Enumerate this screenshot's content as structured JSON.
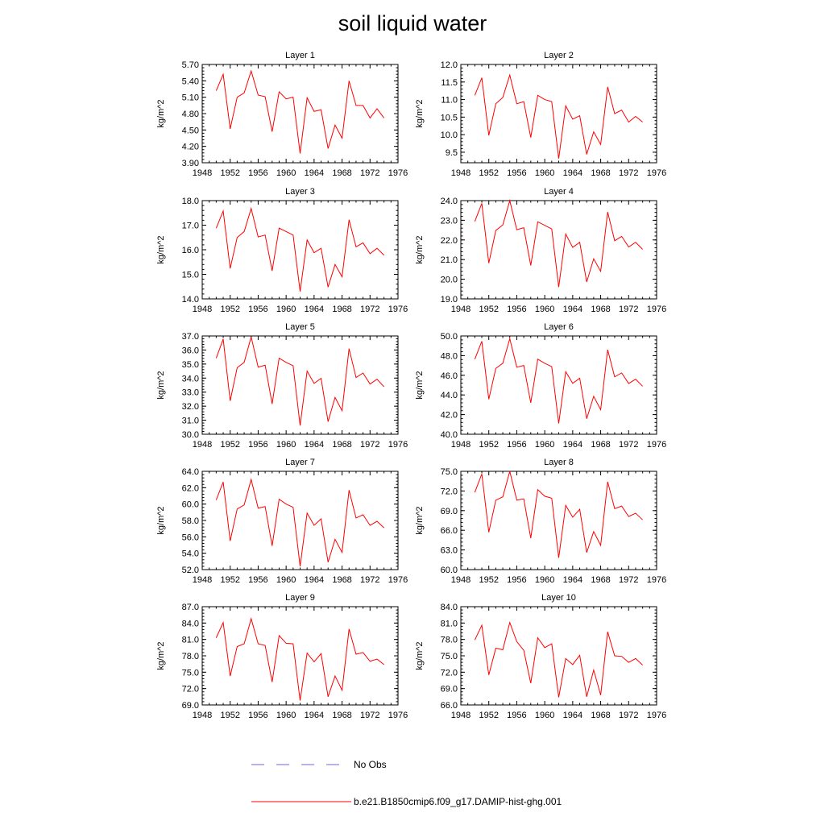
{
  "title": "soil liquid water",
  "legend": [
    {
      "label": "No Obs",
      "color": "#6a6ad0",
      "style": "dashed"
    },
    {
      "label": "b.e21.B1850cmip6.f09_g17.DAMIP-hist-ghg.001",
      "color": "#ff0000",
      "style": "solid"
    }
  ],
  "chart_data": [
    {
      "type": "line",
      "title": "Layer 1",
      "ylabel": "kg/m^2",
      "xlim": [
        1948,
        1976
      ],
      "xticks": [
        "1948",
        "1952",
        "1956",
        "1960",
        "1964",
        "1968",
        "1972",
        "1976"
      ],
      "ylim": [
        3.9,
        5.7
      ],
      "yticks": [
        "3.90",
        "4.20",
        "4.50",
        "4.80",
        "5.10",
        "5.40",
        "5.70"
      ],
      "x": [
        1950,
        1951,
        1952,
        1953,
        1954,
        1955,
        1956,
        1957,
        1958,
        1959,
        1960,
        1961,
        1962,
        1963,
        1964,
        1965,
        1966,
        1967,
        1968,
        1969,
        1970,
        1971,
        1972,
        1973,
        1974
      ],
      "series": [
        {
          "name": "b.e21.B1850cmip6.f09_g17.DAMIP-hist-ghg.001",
          "color": "#ff0000",
          "values": [
            5.22,
            5.52,
            4.52,
            5.1,
            5.18,
            5.58,
            5.14,
            5.11,
            4.47,
            5.2,
            5.07,
            5.1,
            4.07,
            5.09,
            4.84,
            4.87,
            4.16,
            4.59,
            4.35,
            5.4,
            4.95,
            4.95,
            4.72,
            4.89,
            4.72
          ]
        }
      ]
    },
    {
      "type": "line",
      "title": "Layer 2",
      "ylabel": "kg/m^2",
      "xlim": [
        1948,
        1976
      ],
      "xticks": [
        "1948",
        "1952",
        "1956",
        "1960",
        "1964",
        "1968",
        "1972",
        "1976"
      ],
      "ylim": [
        9.2,
        12.0
      ],
      "yticks": [
        "9.5",
        "10.0",
        "10.5",
        "11.0",
        "11.5",
        "12.0"
      ],
      "x": [
        1950,
        1951,
        1952,
        1953,
        1954,
        1955,
        1956,
        1957,
        1958,
        1959,
        1960,
        1961,
        1962,
        1963,
        1964,
        1965,
        1966,
        1967,
        1968,
        1969,
        1970,
        1971,
        1972,
        1973,
        1974
      ],
      "series": [
        {
          "name": "b.e21.B1850cmip6.f09_g17.DAMIP-hist-ghg.001",
          "color": "#ff0000",
          "values": [
            11.12,
            11.62,
            9.98,
            10.88,
            11.06,
            11.7,
            10.88,
            10.94,
            9.92,
            11.12,
            11.0,
            10.94,
            9.32,
            10.82,
            10.44,
            10.54,
            9.44,
            10.08,
            9.72,
            11.36,
            10.6,
            10.7,
            10.36,
            10.52,
            10.36
          ]
        }
      ]
    },
    {
      "type": "line",
      "title": "Layer 3",
      "ylabel": "kg/m^2",
      "xlim": [
        1948,
        1976
      ],
      "xticks": [
        "1948",
        "1952",
        "1956",
        "1960",
        "1964",
        "1968",
        "1972",
        "1976"
      ],
      "ylim": [
        14.0,
        18.0
      ],
      "yticks": [
        "14.0",
        "15.0",
        "16.0",
        "17.0",
        "18.0"
      ],
      "x": [
        1950,
        1951,
        1952,
        1953,
        1954,
        1955,
        1956,
        1957,
        1958,
        1959,
        1960,
        1961,
        1962,
        1963,
        1964,
        1965,
        1966,
        1967,
        1968,
        1969,
        1970,
        1971,
        1972,
        1973,
        1974
      ],
      "series": [
        {
          "name": "b.e21.B1850cmip6.f09_g17.DAMIP-hist-ghg.001",
          "color": "#ff0000",
          "values": [
            16.88,
            17.58,
            15.24,
            16.5,
            16.74,
            17.68,
            16.52,
            16.6,
            15.14,
            16.88,
            16.74,
            16.6,
            14.3,
            16.4,
            15.88,
            16.06,
            14.48,
            15.4,
            14.9,
            17.22,
            16.12,
            16.28,
            15.84,
            16.06,
            15.78
          ]
        }
      ]
    },
    {
      "type": "line",
      "title": "Layer 4",
      "ylabel": "kg/m^2",
      "xlim": [
        1948,
        1976
      ],
      "xticks": [
        "1948",
        "1952",
        "1956",
        "1960",
        "1964",
        "1968",
        "1972",
        "1976"
      ],
      "ylim": [
        19.0,
        24.0
      ],
      "yticks": [
        "19.0",
        "20.0",
        "21.0",
        "22.0",
        "23.0",
        "24.0"
      ],
      "x": [
        1950,
        1951,
        1952,
        1953,
        1954,
        1955,
        1956,
        1957,
        1958,
        1959,
        1960,
        1961,
        1962,
        1963,
        1964,
        1965,
        1966,
        1967,
        1968,
        1969,
        1970,
        1971,
        1972,
        1973,
        1974
      ],
      "series": [
        {
          "name": "b.e21.B1850cmip6.f09_g17.DAMIP-hist-ghg.001",
          "color": "#ff0000",
          "values": [
            22.94,
            23.86,
            20.82,
            22.48,
            22.76,
            24.0,
            22.52,
            22.62,
            20.7,
            22.92,
            22.74,
            22.56,
            19.6,
            22.3,
            21.62,
            21.88,
            19.86,
            21.04,
            20.4,
            23.42,
            21.96,
            22.18,
            21.64,
            21.88,
            21.52
          ]
        }
      ]
    },
    {
      "type": "line",
      "title": "Layer 5",
      "ylabel": "kg/m^2",
      "xlim": [
        1948,
        1976
      ],
      "xticks": [
        "1948",
        "1952",
        "1956",
        "1960",
        "1964",
        "1968",
        "1972",
        "1976"
      ],
      "ylim": [
        30.0,
        37.0
      ],
      "yticks": [
        "30.0",
        "31.0",
        "32.0",
        "33.0",
        "34.0",
        "35.0",
        "36.0",
        "37.0"
      ],
      "x": [
        1950,
        1951,
        1952,
        1953,
        1954,
        1955,
        1956,
        1957,
        1958,
        1959,
        1960,
        1961,
        1962,
        1963,
        1964,
        1965,
        1966,
        1967,
        1968,
        1969,
        1970,
        1971,
        1972,
        1973,
        1974
      ],
      "series": [
        {
          "name": "b.e21.B1850cmip6.f09_g17.DAMIP-hist-ghg.001",
          "color": "#ff0000",
          "values": [
            35.42,
            36.78,
            32.38,
            34.74,
            35.12,
            36.94,
            34.78,
            34.92,
            32.16,
            35.42,
            35.12,
            34.88,
            30.62,
            34.5,
            33.62,
            33.98,
            30.9,
            32.62,
            31.68,
            36.1,
            34.04,
            34.36,
            33.58,
            33.92,
            33.38
          ]
        }
      ]
    },
    {
      "type": "line",
      "title": "Layer 6",
      "ylabel": "kg/m^2",
      "xlim": [
        1948,
        1976
      ],
      "xticks": [
        "1948",
        "1952",
        "1956",
        "1960",
        "1964",
        "1968",
        "1972",
        "1976"
      ],
      "ylim": [
        40.0,
        50.0
      ],
      "yticks": [
        "40.0",
        "42.0",
        "44.0",
        "46.0",
        "48.0",
        "50.0"
      ],
      "x": [
        1950,
        1951,
        1952,
        1953,
        1954,
        1955,
        1956,
        1957,
        1958,
        1959,
        1960,
        1961,
        1962,
        1963,
        1964,
        1965,
        1966,
        1967,
        1968,
        1969,
        1970,
        1971,
        1972,
        1973,
        1974
      ],
      "series": [
        {
          "name": "b.e21.B1850cmip6.f09_g17.DAMIP-hist-ghg.001",
          "color": "#ff0000",
          "values": [
            47.64,
            49.46,
            43.56,
            46.7,
            47.22,
            49.72,
            46.82,
            47.0,
            43.2,
            47.64,
            47.22,
            46.88,
            41.1,
            46.36,
            45.18,
            45.7,
            41.58,
            43.86,
            42.5,
            48.6,
            45.84,
            46.24,
            45.16,
            45.6,
            44.88
          ]
        }
      ]
    },
    {
      "type": "line",
      "title": "Layer 7",
      "ylabel": "kg/m^2",
      "xlim": [
        1948,
        1976
      ],
      "xticks": [
        "1948",
        "1952",
        "1956",
        "1960",
        "1964",
        "1968",
        "1972",
        "1976"
      ],
      "ylim": [
        52.0,
        64.0
      ],
      "yticks": [
        "52.0",
        "54.0",
        "56.0",
        "58.0",
        "60.0",
        "62.0",
        "64.0"
      ],
      "x": [
        1950,
        1951,
        1952,
        1953,
        1954,
        1955,
        1956,
        1957,
        1958,
        1959,
        1960,
        1961,
        1962,
        1963,
        1964,
        1965,
        1966,
        1967,
        1968,
        1969,
        1970,
        1971,
        1972,
        1973,
        1974
      ],
      "series": [
        {
          "name": "b.e21.B1850cmip6.f09_g17.DAMIP-hist-ghg.001",
          "color": "#ff0000",
          "values": [
            60.5,
            62.7,
            55.5,
            59.4,
            59.9,
            63.0,
            59.5,
            59.7,
            54.9,
            60.6,
            60.0,
            59.6,
            52.4,
            58.9,
            57.4,
            58.2,
            52.9,
            55.7,
            54.1,
            61.7,
            58.3,
            58.7,
            57.4,
            57.9,
            57.1
          ]
        }
      ]
    },
    {
      "type": "line",
      "title": "Layer 8",
      "ylabel": "kg/m^2",
      "xlim": [
        1948,
        1976
      ],
      "xticks": [
        "1948",
        "1952",
        "1956",
        "1960",
        "1964",
        "1968",
        "1972",
        "1976"
      ],
      "ylim": [
        60.0,
        75.0
      ],
      "yticks": [
        "60.0",
        "63.0",
        "66.0",
        "69.0",
        "72.0",
        "75.0"
      ],
      "x": [
        1950,
        1951,
        1952,
        1953,
        1954,
        1955,
        1956,
        1957,
        1958,
        1959,
        1960,
        1961,
        1962,
        1963,
        1964,
        1965,
        1966,
        1967,
        1968,
        1969,
        1970,
        1971,
        1972,
        1973,
        1974
      ],
      "series": [
        {
          "name": "b.e21.B1850cmip6.f09_g17.DAMIP-hist-ghg.001",
          "color": "#ff0000",
          "values": [
            71.8,
            74.6,
            65.7,
            70.6,
            71.1,
            75.0,
            70.6,
            70.8,
            64.8,
            72.2,
            71.2,
            70.9,
            61.8,
            69.8,
            68.0,
            69.2,
            62.6,
            65.8,
            63.7,
            73.4,
            69.3,
            69.7,
            68.1,
            68.6,
            67.6
          ]
        }
      ]
    },
    {
      "type": "line",
      "title": "Layer 9",
      "ylabel": "kg/m^2",
      "xlim": [
        1948,
        1976
      ],
      "xticks": [
        "1948",
        "1952",
        "1956",
        "1960",
        "1964",
        "1968",
        "1972",
        "1976"
      ],
      "ylim": [
        69.0,
        87.0
      ],
      "yticks": [
        "69.0",
        "72.0",
        "75.0",
        "78.0",
        "81.0",
        "84.0",
        "87.0"
      ],
      "x": [
        1950,
        1951,
        1952,
        1953,
        1954,
        1955,
        1956,
        1957,
        1958,
        1959,
        1960,
        1961,
        1962,
        1963,
        1964,
        1965,
        1966,
        1967,
        1968,
        1969,
        1970,
        1971,
        1972,
        1973,
        1974
      ],
      "series": [
        {
          "name": "b.e21.B1850cmip6.f09_g17.DAMIP-hist-ghg.001",
          "color": "#ff0000",
          "values": [
            81.3,
            84.1,
            74.3,
            79.7,
            80.2,
            84.8,
            80.2,
            79.9,
            73.2,
            81.7,
            80.3,
            80.2,
            69.8,
            78.5,
            76.9,
            78.4,
            70.5,
            74.3,
            71.7,
            82.9,
            78.3,
            78.6,
            77.0,
            77.4,
            76.4
          ]
        }
      ]
    },
    {
      "type": "line",
      "title": "Layer 10",
      "ylabel": "kg/m^2",
      "xlim": [
        1948,
        1976
      ],
      "xticks": [
        "1948",
        "1952",
        "1956",
        "1960",
        "1964",
        "1968",
        "1972",
        "1976"
      ],
      "ylim": [
        66.0,
        84.0
      ],
      "yticks": [
        "66.0",
        "69.0",
        "72.0",
        "75.0",
        "78.0",
        "81.0",
        "84.0"
      ],
      "x": [
        1950,
        1951,
        1952,
        1953,
        1954,
        1955,
        1956,
        1957,
        1958,
        1959,
        1960,
        1961,
        1962,
        1963,
        1964,
        1965,
        1966,
        1967,
        1968,
        1969,
        1970,
        1971,
        1972,
        1973,
        1974
      ],
      "series": [
        {
          "name": "b.e21.B1850cmip6.f09_g17.DAMIP-hist-ghg.001",
          "color": "#ff0000",
          "values": [
            77.9,
            80.6,
            71.5,
            76.4,
            76.1,
            81.1,
            77.6,
            76.0,
            70.0,
            78.3,
            76.5,
            77.2,
            67.4,
            74.5,
            73.4,
            75.1,
            67.5,
            72.4,
            67.8,
            79.4,
            75.0,
            74.9,
            73.8,
            74.5,
            73.3
          ]
        }
      ]
    }
  ]
}
